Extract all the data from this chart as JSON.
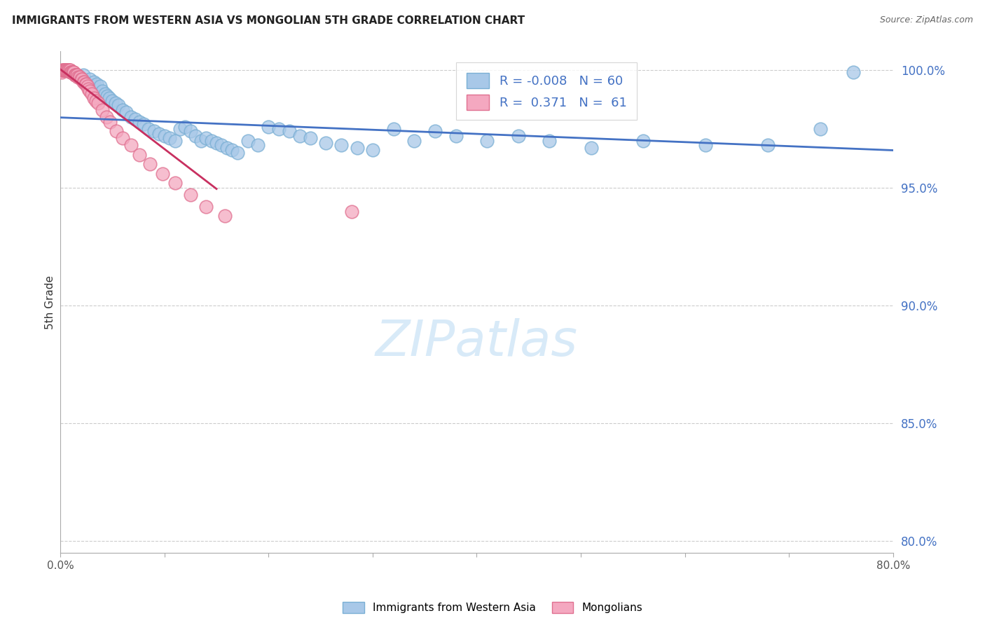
{
  "title": "IMMIGRANTS FROM WESTERN ASIA VS MONGOLIAN 5TH GRADE CORRELATION CHART",
  "source": "Source: ZipAtlas.com",
  "ylabel": "5th Grade",
  "xlim": [
    0.0,
    0.8
  ],
  "ylim": [
    0.795,
    1.008
  ],
  "yticks": [
    0.8,
    0.85,
    0.9,
    0.95,
    1.0
  ],
  "xticks": [
    0.0,
    0.1,
    0.2,
    0.3,
    0.4,
    0.5,
    0.6,
    0.7,
    0.8
  ],
  "blue_R": -0.008,
  "blue_N": 60,
  "pink_R": 0.371,
  "pink_N": 61,
  "blue_color": "#a8c8e8",
  "pink_color": "#f4a8c0",
  "blue_line_color": "#4472c4",
  "pink_line_color": "#c0404080",
  "watermark_color": "#d8eaf8",
  "blue_x": [
    0.022,
    0.028,
    0.032,
    0.035,
    0.038,
    0.04,
    0.043,
    0.045,
    0.047,
    0.05,
    0.053,
    0.056,
    0.06,
    0.063,
    0.068,
    0.072,
    0.076,
    0.08,
    0.085,
    0.09,
    0.095,
    0.1,
    0.105,
    0.11,
    0.115,
    0.12,
    0.125,
    0.13,
    0.135,
    0.14,
    0.145,
    0.15,
    0.155,
    0.16,
    0.165,
    0.17,
    0.18,
    0.19,
    0.2,
    0.21,
    0.22,
    0.23,
    0.24,
    0.255,
    0.27,
    0.285,
    0.3,
    0.32,
    0.34,
    0.36,
    0.38,
    0.41,
    0.44,
    0.47,
    0.51,
    0.56,
    0.62,
    0.68,
    0.73,
    0.762
  ],
  "blue_y": [
    0.998,
    0.996,
    0.995,
    0.994,
    0.993,
    0.991,
    0.99,
    0.989,
    0.988,
    0.987,
    0.986,
    0.985,
    0.983,
    0.982,
    0.98,
    0.979,
    0.978,
    0.977,
    0.975,
    0.974,
    0.973,
    0.972,
    0.971,
    0.97,
    0.975,
    0.976,
    0.974,
    0.972,
    0.97,
    0.971,
    0.97,
    0.969,
    0.968,
    0.967,
    0.966,
    0.965,
    0.97,
    0.968,
    0.976,
    0.975,
    0.974,
    0.972,
    0.971,
    0.969,
    0.968,
    0.967,
    0.966,
    0.975,
    0.97,
    0.974,
    0.972,
    0.97,
    0.972,
    0.97,
    0.967,
    0.97,
    0.968,
    0.968,
    0.975,
    0.999
  ],
  "pink_x": [
    0.001,
    0.002,
    0.002,
    0.003,
    0.003,
    0.004,
    0.004,
    0.005,
    0.005,
    0.006,
    0.006,
    0.007,
    0.007,
    0.008,
    0.008,
    0.009,
    0.009,
    0.01,
    0.01,
    0.011,
    0.011,
    0.012,
    0.012,
    0.013,
    0.013,
    0.014,
    0.014,
    0.015,
    0.015,
    0.016,
    0.016,
    0.017,
    0.018,
    0.019,
    0.02,
    0.021,
    0.022,
    0.023,
    0.024,
    0.025,
    0.026,
    0.027,
    0.028,
    0.03,
    0.032,
    0.034,
    0.036,
    0.04,
    0.044,
    0.048,
    0.054,
    0.06,
    0.068,
    0.076,
    0.086,
    0.098,
    0.11,
    0.125,
    0.14,
    0.158,
    0.28
  ],
  "pink_y": [
    0.999,
    1.0,
    1.0,
    1.0,
    1.0,
    1.0,
    1.0,
    1.0,
    1.0,
    1.0,
    1.0,
    1.0,
    1.0,
    1.0,
    1.0,
    1.0,
    1.0,
    0.999,
    0.999,
    0.999,
    0.999,
    0.999,
    0.999,
    0.999,
    0.999,
    0.998,
    0.998,
    0.998,
    0.998,
    0.998,
    0.998,
    0.997,
    0.997,
    0.997,
    0.996,
    0.996,
    0.995,
    0.995,
    0.994,
    0.994,
    0.993,
    0.992,
    0.991,
    0.99,
    0.988,
    0.987,
    0.986,
    0.983,
    0.98,
    0.978,
    0.974,
    0.971,
    0.968,
    0.964,
    0.96,
    0.956,
    0.952,
    0.947,
    0.942,
    0.938,
    0.94
  ]
}
